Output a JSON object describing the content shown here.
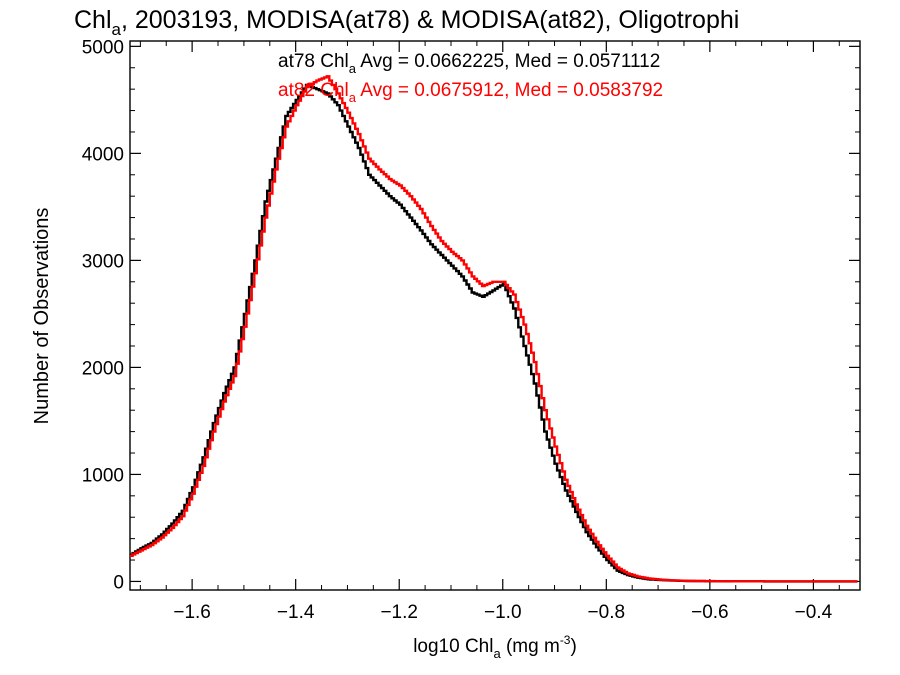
{
  "chart_data": {
    "type": "line",
    "title_main": "Chl",
    "title_sub": "a",
    "title_rest": ", 2003193, MODISA(at78) & MODISA(at82), Oligotrophi",
    "ylabel": "Number of Observations",
    "xlabel_pre": "log10 Chl",
    "xlabel_sub": "a",
    "xlabel_mid": " (mg m",
    "xlabel_sup": "-3",
    "xlabel_post": ")",
    "xlim": [
      -1.72,
      -0.31
    ],
    "ylim": [
      -80,
      5050
    ],
    "xticks": [
      -1.6,
      -1.4,
      -1.2,
      -1.0,
      -0.8,
      -0.6,
      -0.4
    ],
    "xtick_labels": [
      "−1.6",
      "−1.4",
      "−1.2",
      "−1.0",
      "−0.8",
      "−0.6",
      "−0.4"
    ],
    "yticks": [
      0,
      1000,
      2000,
      3000,
      4000,
      5000
    ],
    "ytick_labels": [
      "0",
      "1000",
      "2000",
      "3000",
      "4000",
      "5000"
    ],
    "annotations": [
      {
        "pre": "at78 Chl",
        "sub": "a",
        "post": " Avg = 0.0662225, Med = 0.0571112",
        "color": "#000000"
      },
      {
        "pre": "at82 Chl",
        "sub": "a",
        "post": " Avg = 0.0675912, Med = 0.0583792",
        "color": "#ff0000"
      }
    ],
    "series": [
      {
        "color": "#000000",
        "x": [
          -1.72,
          -1.7,
          -1.68,
          -1.66,
          -1.64,
          -1.62,
          -1.6,
          -1.58,
          -1.56,
          -1.54,
          -1.52,
          -1.5,
          -1.48,
          -1.46,
          -1.44,
          -1.42,
          -1.4,
          -1.38,
          -1.36,
          -1.34,
          -1.32,
          -1.3,
          -1.28,
          -1.26,
          -1.24,
          -1.22,
          -1.2,
          -1.18,
          -1.16,
          -1.14,
          -1.12,
          -1.1,
          -1.08,
          -1.06,
          -1.04,
          -1.02,
          -1.0,
          -0.98,
          -0.96,
          -0.94,
          -0.92,
          -0.9,
          -0.88,
          -0.86,
          -0.84,
          -0.82,
          -0.8,
          -0.78,
          -0.76,
          -0.74,
          -0.72,
          -0.7,
          -0.68,
          -0.66,
          -0.64,
          -0.62,
          -0.6,
          -0.58,
          -0.56,
          -0.54,
          -0.52,
          -0.5,
          -0.48,
          -0.46,
          -0.44,
          -0.42,
          -0.4,
          -0.38,
          -0.36,
          -0.34,
          -0.32
        ],
        "y": [
          250,
          310,
          360,
          440,
          540,
          660,
          880,
          1160,
          1480,
          1760,
          2000,
          2500,
          3000,
          3550,
          3950,
          4350,
          4500,
          4640,
          4600,
          4560,
          4450,
          4250,
          4050,
          3800,
          3700,
          3600,
          3520,
          3400,
          3280,
          3150,
          3050,
          2950,
          2850,
          2700,
          2660,
          2720,
          2780,
          2550,
          2200,
          1850,
          1400,
          1100,
          850,
          650,
          460,
          320,
          200,
          100,
          60,
          35,
          20,
          14,
          10,
          6,
          4,
          3,
          2,
          2,
          1,
          1,
          1,
          1,
          0,
          0,
          0,
          0,
          0,
          0,
          0,
          0,
          0
        ]
      },
      {
        "color": "#ff0000",
        "x": [
          -1.72,
          -1.7,
          -1.68,
          -1.66,
          -1.64,
          -1.62,
          -1.6,
          -1.58,
          -1.56,
          -1.54,
          -1.52,
          -1.5,
          -1.48,
          -1.46,
          -1.44,
          -1.42,
          -1.4,
          -1.38,
          -1.36,
          -1.34,
          -1.32,
          -1.3,
          -1.28,
          -1.26,
          -1.24,
          -1.22,
          -1.2,
          -1.18,
          -1.16,
          -1.14,
          -1.12,
          -1.1,
          -1.08,
          -1.06,
          -1.04,
          -1.02,
          -1.0,
          -0.98,
          -0.96,
          -0.94,
          -0.92,
          -0.9,
          -0.88,
          -0.86,
          -0.84,
          -0.82,
          -0.8,
          -0.78,
          -0.76,
          -0.74,
          -0.72,
          -0.7,
          -0.68,
          -0.66,
          -0.64,
          -0.62,
          -0.6,
          -0.58,
          -0.56,
          -0.54,
          -0.52,
          -0.5,
          -0.48,
          -0.46,
          -0.44,
          -0.42,
          -0.4,
          -0.38,
          -0.36,
          -0.34,
          -0.32
        ],
        "y": [
          240,
          290,
          340,
          410,
          500,
          610,
          820,
          1080,
          1400,
          1680,
          1920,
          2380,
          2880,
          3400,
          3850,
          4250,
          4450,
          4620,
          4680,
          4720,
          4560,
          4380,
          4180,
          3950,
          3850,
          3760,
          3700,
          3600,
          3480,
          3320,
          3180,
          3080,
          3000,
          2850,
          2760,
          2800,
          2800,
          2680,
          2400,
          2050,
          1600,
          1260,
          950,
          720,
          520,
          370,
          240,
          130,
          75,
          45,
          28,
          18,
          12,
          8,
          5,
          4,
          3,
          2,
          2,
          1,
          1,
          1,
          0,
          0,
          0,
          0,
          0,
          0,
          0,
          0,
          0
        ]
      }
    ]
  }
}
